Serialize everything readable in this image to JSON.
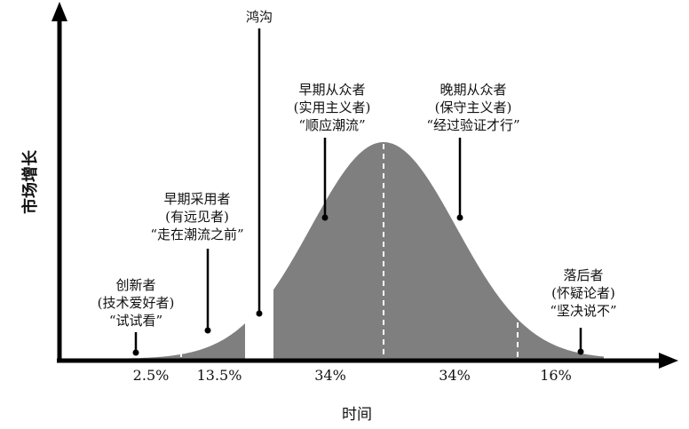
{
  "diagram": {
    "y_axis_label": "市场增长",
    "x_axis_label": "时间",
    "chasm_label": "鸿沟",
    "segments": [
      {
        "lines": [
          "创新者",
          "(技术爱好者)",
          "“试试看”"
        ],
        "percent": "2.5%"
      },
      {
        "lines": [
          "早期采用者",
          "(有远见者)",
          "“走在潮流之前”"
        ],
        "percent": "13.5%"
      },
      {
        "lines": [
          "早期从众者",
          "(实用主义者)",
          "“顺应潮流”"
        ],
        "percent": "34%"
      },
      {
        "lines": [
          "晚期从众者",
          "(保守主义者)",
          "“经过验证才行”"
        ],
        "percent": "34%"
      },
      {
        "lines": [
          "落后者",
          "(怀疑论者)",
          "“坚决说不”"
        ],
        "percent": "16%"
      }
    ],
    "colors": {
      "curve_fill": "#7f7f7f",
      "axis": "#000000",
      "divider": "#ffffff"
    }
  }
}
